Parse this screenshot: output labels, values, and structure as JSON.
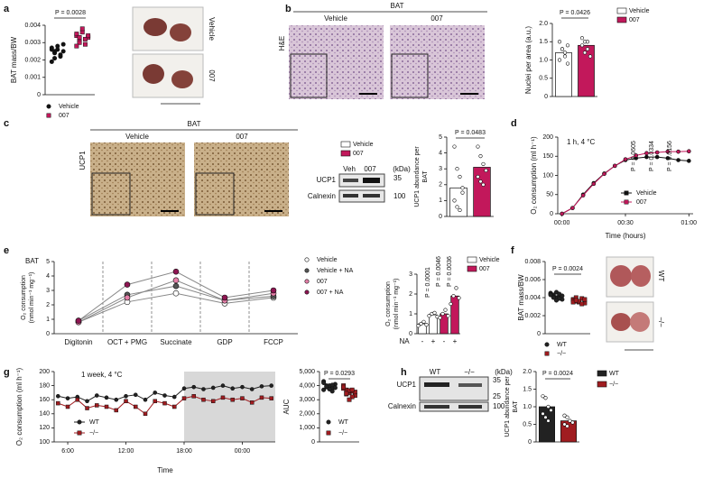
{
  "panels": [
    "a",
    "b",
    "c",
    "d",
    "e",
    "f",
    "g",
    "h"
  ],
  "figure_text": {
    "a": {
      "images": [
        "Vehicle",
        "007"
      ]
    },
    "b": {
      "tissue": "BAT",
      "stain": "H&E",
      "groups": [
        "Vehicle",
        "007"
      ]
    },
    "c": {
      "tissue": "BAT",
      "stain": "UCP1",
      "groups": [
        "Vehicle",
        "007"
      ],
      "blot": {
        "lanes": [
          "Veh",
          "007"
        ],
        "unit": "(kDa)",
        "bands": [
          "UCP1",
          "Calnexin"
        ],
        "markers": [
          35,
          100
        ]
      }
    },
    "e": {
      "tissue": "BAT"
    },
    "f": {
      "images": [
        "WT",
        "−/−"
      ]
    },
    "h": {
      "blot": {
        "lanes": [
          "WT",
          "−/−"
        ],
        "unit": "(kDa)",
        "bands": [
          "UCP1",
          "Calnexin"
        ],
        "markers": [
          35,
          25,
          100
        ]
      }
    }
  },
  "chart_data": [
    {
      "type": "strip",
      "ylabel": "BAT mass/BW",
      "ylim": [
        0,
        0.004
      ],
      "yticks": [
        0,
        0.001,
        0.002,
        0.003,
        0.004
      ],
      "annotations": [
        "P = 0.0028"
      ],
      "series": [
        {
          "name": "Vehicle",
          "color": "#111111",
          "marker": "circle",
          "values": [
            0.0026,
            0.0024,
            0.0028,
            0.0022,
            0.0025,
            0.0027,
            0.0021,
            0.0026,
            0.0023,
            0.0029,
            0.0019,
            0.0025
          ]
        },
        {
          "name": "007",
          "color": "#c2185b",
          "marker": "square",
          "values": [
            0.0034,
            0.0031,
            0.0036,
            0.0029,
            0.0033,
            0.0035,
            0.003,
            0.0038,
            0.0032,
            0.0034,
            0.0028,
            0.0033
          ]
        }
      ]
    },
    {
      "type": "bar",
      "ylabel": "Nuclei per area (a.u.)",
      "ylim": [
        0,
        2
      ],
      "yticks": [
        0,
        0.5,
        {
          "value": 1,
          "label": "1.0"
        },
        1.5,
        {
          "value": 2,
          "label": "2.0"
        }
      ],
      "annotations": [
        "P = 0.0426"
      ],
      "series": [
        {
          "name": "Vehicle",
          "color": "#ffffff",
          "values": [
            1.2
          ],
          "points": [
            1.5,
            1.3,
            1.1,
            0.9,
            1.0,
            1.3,
            1.2,
            1.4
          ]
        },
        {
          "name": "007",
          "color": "#c2185b",
          "values": [
            1.4
          ],
          "points": [
            1.6,
            1.5,
            1.3,
            1.1,
            1.4,
            1.2,
            1.5
          ]
        }
      ]
    },
    {
      "type": "bar",
      "ylabel": [
        "UCP1 abundance per",
        "BAT"
      ],
      "ylim": [
        0,
        5
      ],
      "yticks": [
        0,
        1,
        2,
        3,
        4,
        5
      ],
      "annotations": [
        "P = 0.0483"
      ],
      "series": [
        {
          "name": "Vehicle",
          "color": "#ffffff",
          "values": [
            1.8
          ],
          "points": [
            4.4,
            3.0,
            2.5,
            1.5,
            1.0,
            0.6,
            0.4,
            1.8
          ]
        },
        {
          "name": "007",
          "color": "#c2185b",
          "values": [
            3.1
          ],
          "points": [
            4.4,
            3.8,
            3.3,
            2.9,
            2.5,
            2.2,
            2.0
          ]
        }
      ]
    },
    {
      "type": "line",
      "title": "1 h, 4 °C",
      "ylabel": "O₂ consumption (ml h⁻¹)",
      "xlabel": "Time (hours)",
      "x": [
        0,
        5,
        10,
        15,
        20,
        25,
        30,
        35,
        40,
        45,
        50,
        55,
        60
      ],
      "xlim": [
        -2,
        62
      ],
      "xticks": [
        {
          "value": 0,
          "label": "00:00"
        },
        {
          "value": 30,
          "label": "00:30"
        },
        {
          "value": 60,
          "label": "01:00"
        }
      ],
      "ylim": [
        0,
        200
      ],
      "yticks": [
        0,
        50,
        100,
        150,
        200
      ],
      "annotations": [
        "P = 0.0605",
        "P = 0.0334",
        "P = 0.0156"
      ],
      "series": [
        {
          "name": "Vehicle",
          "color": "#111111",
          "marker": "circle",
          "values": [
            0,
            15,
            50,
            80,
            105,
            125,
            140,
            145,
            148,
            148,
            145,
            140,
            138
          ]
        },
        {
          "name": "007",
          "color": "#c2185b",
          "marker": "circle",
          "values": [
            0,
            15,
            48,
            78,
            104,
            125,
            142,
            152,
            158,
            160,
            162,
            162,
            163
          ]
        }
      ]
    },
    {
      "type": "line",
      "ylabel": [
        "O₂ consumption",
        "(nmol min⁻¹ mg⁻¹)"
      ],
      "separators": true,
      "categories": [
        "Digitonin",
        "OCT + PMG",
        "Succinate",
        "GDP",
        "FCCP"
      ],
      "ylim": [
        0,
        5
      ],
      "yticks": [
        0,
        1,
        2,
        3,
        4,
        5
      ],
      "series": [
        {
          "name": "Vehicle",
          "color": "#ffffff",
          "line": "#888888",
          "marker": "circle",
          "values": [
            0.8,
            2.2,
            2.8,
            2.1,
            2.5
          ]
        },
        {
          "name": "Vehicle + NA",
          "color": "#555555",
          "line": "#888888",
          "marker": "circle",
          "values": [
            0.9,
            2.7,
            3.3,
            2.3,
            2.6
          ]
        },
        {
          "name": "007",
          "color": "#e57fa8",
          "line": "#888888",
          "marker": "circle",
          "values": [
            0.8,
            2.5,
            3.7,
            2.3,
            2.8
          ]
        },
        {
          "name": "007 + NA",
          "color": "#8e1552",
          "line": "#888888",
          "marker": "circle",
          "values": [
            0.9,
            3.4,
            4.3,
            2.5,
            3.0
          ]
        }
      ]
    },
    {
      "type": "bar",
      "ylabel": [
        "O₂ consumption",
        "(nmol min⁻¹ mg⁻¹)"
      ],
      "xlabel": "NA",
      "categories": [
        "-",
        "+"
      ],
      "ylim": [
        0,
        3
      ],
      "yticks": [
        0,
        1,
        2,
        3
      ],
      "annotations": [
        "P = 0.0001",
        "P = 0.0046",
        "P = 0.0036"
      ],
      "series": [
        {
          "name": "Vehicle",
          "color": "#ffffff",
          "values": [
            0.5,
            0.95
          ],
          "points": [
            [
              0.4,
              0.5,
              0.6,
              0.45
            ],
            [
              0.9,
              1.0,
              1.05,
              0.85
            ]
          ]
        },
        {
          "name": "007",
          "color": "#c2185b",
          "values": [
            1.0,
            1.9
          ],
          "points": [
            [
              0.8,
              1.0,
              1.2,
              0.9
            ],
            [
              1.5,
              1.9,
              2.3,
              1.8
            ]
          ]
        }
      ]
    },
    {
      "type": "strip",
      "ylabel": "BAT mass/BW",
      "ylim": [
        0,
        0.008
      ],
      "yticks": [
        0,
        0.002,
        0.004,
        0.006,
        0.008
      ],
      "annotations": [
        "P = 0.0024"
      ],
      "series": [
        {
          "name": "WT",
          "color": "#222222",
          "marker": "circle",
          "values": [
            0.0045,
            0.0043,
            0.004,
            0.0042,
            0.0038,
            0.0044,
            0.0041,
            0.0046,
            0.0039,
            0.0042,
            0.0043,
            0.004,
            0.0037,
            0.0044
          ]
        },
        {
          "name": "−/−",
          "color": "#a01c20",
          "marker": "square",
          "values": [
            0.0038,
            0.0036,
            0.0035,
            0.0039,
            0.0034,
            0.0037,
            0.004,
            0.0036,
            0.0033,
            0.0038,
            0.0035,
            0.0037
          ]
        }
      ]
    },
    {
      "type": "line",
      "title": "1 week, 4 °C",
      "ylabel": "O₂ consumption (ml h⁻¹)",
      "xlabel": "Time",
      "shaded_from": 18,
      "x": [
        5,
        6,
        7,
        8,
        9,
        10,
        11,
        12,
        13,
        14,
        15,
        16,
        17,
        18,
        19,
        20,
        21,
        22,
        23,
        24,
        25,
        26,
        27
      ],
      "xlim": [
        4.6,
        27.4
      ],
      "xticks": [
        {
          "value": 6,
          "label": "6:00"
        },
        {
          "value": 12,
          "label": "12:00"
        },
        {
          "value": 18,
          "label": "18:00"
        },
        {
          "value": 24,
          "label": "00:00"
        }
      ],
      "ylim": [
        100,
        200
      ],
      "yticks": [
        100,
        120,
        140,
        160,
        180,
        200
      ],
      "series": [
        {
          "name": "WT",
          "color": "#222222",
          "marker": "circle",
          "values": [
            165,
            162,
            164,
            158,
            166,
            163,
            160,
            165,
            167,
            160,
            170,
            166,
            164,
            176,
            178,
            175,
            177,
            180,
            176,
            178,
            175,
            179,
            180
          ]
        },
        {
          "name": "−/−",
          "color": "#a01c20",
          "marker": "square",
          "values": [
            155,
            150,
            160,
            148,
            152,
            150,
            145,
            158,
            150,
            140,
            158,
            155,
            150,
            162,
            165,
            160,
            158,
            163,
            160,
            162,
            156,
            163,
            162
          ]
        }
      ]
    },
    {
      "type": "strip",
      "ylabel": "AUC",
      "ylim": [
        0,
        5000
      ],
      "yticks": [
        0,
        {
          "value": 1000,
          "label": "1,000"
        },
        {
          "value": 2000,
          "label": "2,000"
        },
        {
          "value": 3000,
          "label": "3,000"
        },
        {
          "value": 4000,
          "label": "4,000"
        },
        {
          "value": 5000,
          "label": "5,000"
        }
      ],
      "annotations": [
        "P = 0.0293"
      ],
      "series": [
        {
          "name": "WT",
          "color": "#222222",
          "marker": "circle",
          "values": [
            4300,
            4000,
            3900,
            3800,
            4100,
            3700,
            3900,
            4000,
            3600,
            3850,
            4200,
            3950,
            3750,
            4050
          ]
        },
        {
          "name": "−/−",
          "color": "#a01c20",
          "marker": "square",
          "values": [
            4000,
            3700,
            3500,
            3600,
            3300,
            3800,
            3400,
            3650,
            3200,
            3550,
            3900,
            3450,
            3000,
            3700
          ]
        }
      ]
    },
    {
      "type": "bar",
      "ylabel": [
        "UCP1 abundance per",
        "BAT"
      ],
      "ylim": [
        0,
        2
      ],
      "yticks": [
        0,
        0.5,
        {
          "value": 1,
          "label": "1.0"
        },
        1.5,
        {
          "value": 2,
          "label": "2.0"
        }
      ],
      "annotations": [
        "P = 0.0024"
      ],
      "series": [
        {
          "name": "WT",
          "color": "#222222",
          "values": [
            1.0
          ],
          "points": [
            1.3,
            1.25,
            1.0,
            0.9,
            0.8,
            0.7,
            0.6
          ]
        },
        {
          "name": "−/−",
          "color": "#a01c20",
          "values": [
            0.6
          ],
          "points": [
            0.75,
            0.7,
            0.6,
            0.55,
            0.5,
            0.45
          ]
        }
      ]
    }
  ]
}
